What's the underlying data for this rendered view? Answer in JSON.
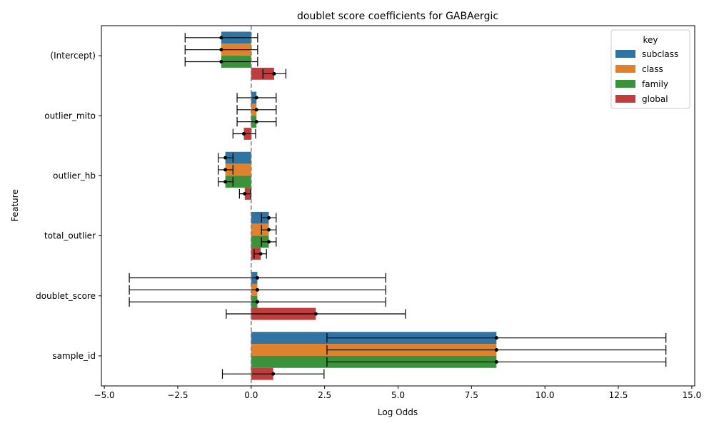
{
  "chart_data": {
    "type": "bar",
    "orientation": "horizontal",
    "title": "doublet score coefficients for GABAergic",
    "xlabel": "Log Odds",
    "ylabel": "Feature",
    "xlim": [
      -5.1,
      15.1
    ],
    "xticks": [
      -5.0,
      -2.5,
      0.0,
      2.5,
      5.0,
      7.5,
      10.0,
      12.5,
      15.0
    ],
    "xtick_labels": [
      "−5.0",
      "−2.5",
      "0.0",
      "2.5",
      "5.0",
      "7.5",
      "10.0",
      "12.5",
      "15.0"
    ],
    "categories": [
      "(Intercept)",
      "outlier_mito",
      "outlier_hb",
      "total_outlier",
      "doublet_score",
      "sample_id"
    ],
    "reference_line": 0,
    "grid": false,
    "legend": {
      "title": "key",
      "placement": "top-right"
    },
    "series": [
      {
        "name": "subclass",
        "color": "#3274a1",
        "values": [
          -1.02,
          0.18,
          -0.88,
          0.6,
          0.21,
          8.35
        ],
        "ci_low": [
          -2.25,
          -0.48,
          -1.12,
          0.35,
          -4.15,
          2.58
        ],
        "ci_high": [
          0.22,
          0.85,
          -0.62,
          0.85,
          4.58,
          14.12
        ]
      },
      {
        "name": "class",
        "color": "#e1812c",
        "values": [
          -1.02,
          0.18,
          -0.88,
          0.6,
          0.21,
          8.35
        ],
        "ci_low": [
          -2.25,
          -0.48,
          -1.12,
          0.35,
          -4.15,
          2.58
        ],
        "ci_high": [
          0.22,
          0.85,
          -0.62,
          0.85,
          4.58,
          14.12
        ]
      },
      {
        "name": "family",
        "color": "#3a923a",
        "values": [
          -1.02,
          0.18,
          -0.88,
          0.6,
          0.21,
          8.35
        ],
        "ci_low": [
          -2.25,
          -0.48,
          -1.12,
          0.35,
          -4.15,
          2.58
        ],
        "ci_high": [
          0.22,
          0.85,
          -0.62,
          0.85,
          4.58,
          14.12
        ]
      },
      {
        "name": "global",
        "color": "#c03d3e",
        "values": [
          0.78,
          -0.25,
          -0.22,
          0.32,
          2.2,
          0.75
        ],
        "ci_low": [
          0.4,
          -0.62,
          -0.4,
          0.1,
          -0.85,
          -0.98
        ],
        "ci_high": [
          1.18,
          0.15,
          -0.02,
          0.52,
          5.25,
          2.48
        ]
      }
    ]
  }
}
